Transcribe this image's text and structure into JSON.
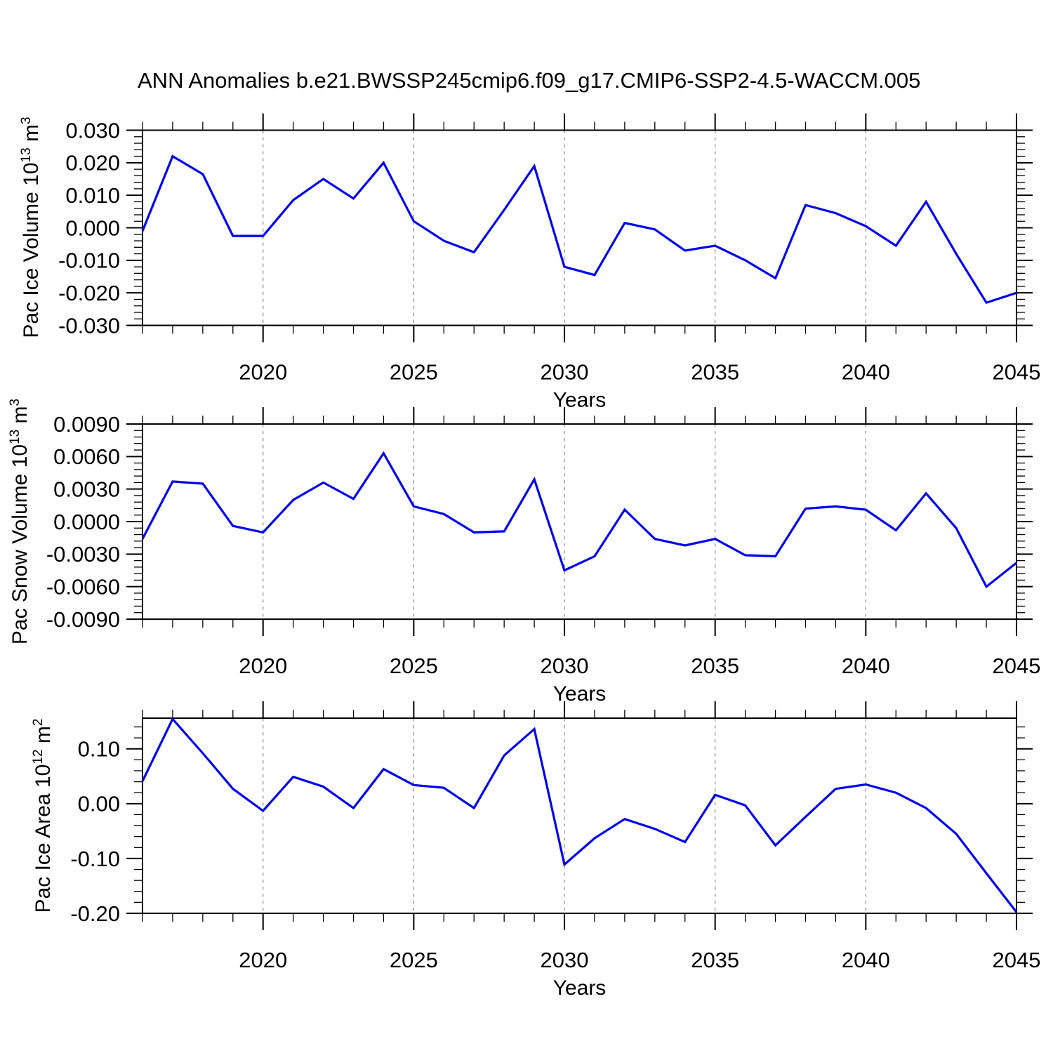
{
  "page": {
    "title": "ANN Anomalies b.e21.BWSSP245cmip6.f09_g17.CMIP6-SSP2-4.5-WACCM.005"
  },
  "colors": {
    "line": "#0000EE",
    "axis": "#000000",
    "grid": "#8a8a8a",
    "background": "#FFFFFF"
  },
  "chart_data": [
    {
      "type": "line",
      "name": "pac-ice-volume",
      "ylabel": {
        "text": "Pac Ice Volume 10",
        "exp": "13",
        "unit": " m",
        "unit_exp": "3"
      },
      "xlabel": "Years",
      "x": [
        2016,
        2017,
        2018,
        2019,
        2020,
        2021,
        2022,
        2023,
        2024,
        2025,
        2026,
        2027,
        2028,
        2029,
        2030,
        2031,
        2032,
        2033,
        2034,
        2035,
        2036,
        2037,
        2038,
        2039,
        2040,
        2041,
        2042,
        2043,
        2044,
        2045
      ],
      "values": [
        -0.001,
        0.022,
        0.0165,
        -0.0025,
        -0.0025,
        0.0085,
        0.015,
        0.009,
        0.02,
        0.002,
        -0.004,
        -0.0075,
        0.0055,
        0.019,
        -0.012,
        -0.0145,
        0.0015,
        -0.0005,
        -0.007,
        -0.0055,
        -0.01,
        -0.0155,
        0.007,
        0.0045,
        0.0005,
        -0.0055,
        0.008,
        -0.008,
        -0.023,
        -0.02
      ],
      "xlim": [
        2016,
        2045
      ],
      "ylim": [
        -0.03,
        0.03
      ],
      "ytick_major": 0.01,
      "ytick_minor": 0.002,
      "ydecimals": 3,
      "xticks": [
        2020,
        2025,
        2030,
        2035,
        2040,
        2045
      ],
      "xgrid_dashed": [
        2020,
        2025,
        2030,
        2035,
        2040
      ],
      "grid": "x-dashed",
      "legend": "none"
    },
    {
      "type": "line",
      "name": "pac-snow-volume",
      "ylabel": {
        "text": "Pac Snow Volume 10",
        "exp": "13",
        "unit": " m",
        "unit_exp": "3"
      },
      "xlabel": "Years",
      "x": [
        2016,
        2017,
        2018,
        2019,
        2020,
        2021,
        2022,
        2023,
        2024,
        2025,
        2026,
        2027,
        2028,
        2029,
        2030,
        2031,
        2032,
        2033,
        2034,
        2035,
        2036,
        2037,
        2038,
        2039,
        2040,
        2041,
        2042,
        2043,
        2044,
        2045
      ],
      "values": [
        -0.0016,
        0.0037,
        0.0035,
        -0.0004,
        -0.001,
        0.002,
        0.0036,
        0.0021,
        0.0063,
        0.0014,
        0.0007,
        -0.001,
        -0.0009,
        0.0039,
        -0.0045,
        -0.0032,
        0.0011,
        -0.0016,
        -0.0022,
        -0.0016,
        -0.0031,
        -0.0032,
        0.0012,
        0.0014,
        0.0011,
        -0.0008,
        0.0026,
        -0.0006,
        -0.006,
        -0.0038
      ],
      "xlim": [
        2016,
        2045
      ],
      "ylim": [
        -0.009,
        0.009
      ],
      "ytick_major": 0.003,
      "ytick_minor": 0.0006,
      "ydecimals": 4,
      "xticks": [
        2020,
        2025,
        2030,
        2035,
        2040,
        2045
      ],
      "xgrid_dashed": [
        2020,
        2025,
        2030,
        2035,
        2040
      ],
      "grid": "x-dashed",
      "legend": "none"
    },
    {
      "type": "line",
      "name": "pac-ice-area",
      "ylabel": {
        "text": "Pac Ice Area 10",
        "exp": "12",
        "unit": " m",
        "unit_exp": "2"
      },
      "xlabel": "Years",
      "x": [
        2016,
        2017,
        2018,
        2019,
        2020,
        2021,
        2022,
        2023,
        2024,
        2025,
        2026,
        2027,
        2028,
        2029,
        2030,
        2031,
        2032,
        2033,
        2034,
        2035,
        2036,
        2037,
        2038,
        2039,
        2040,
        2041,
        2042,
        2043,
        2044,
        2045
      ],
      "values": [
        0.041,
        0.1545,
        0.092,
        0.027,
        -0.013,
        0.049,
        0.031,
        -0.008,
        0.063,
        0.034,
        0.029,
        -0.008,
        0.088,
        0.136,
        -0.111,
        -0.063,
        -0.028,
        -0.046,
        -0.07,
        0.016,
        -0.003,
        -0.076,
        -0.024,
        0.027,
        0.035,
        0.02,
        -0.008,
        -0.055,
        -0.127,
        -0.198
      ],
      "xlim": [
        2016,
        2045
      ],
      "ylim": [
        -0.2,
        0.156
      ],
      "ytick_major": 0.1,
      "ytick_minor": 0.02,
      "ydecimals": 2,
      "xticks": [
        2020,
        2025,
        2030,
        2035,
        2040,
        2045
      ],
      "xgrid_dashed": [
        2020,
        2025,
        2030,
        2035,
        2040
      ],
      "grid": "x-dashed",
      "legend": "none"
    }
  ]
}
